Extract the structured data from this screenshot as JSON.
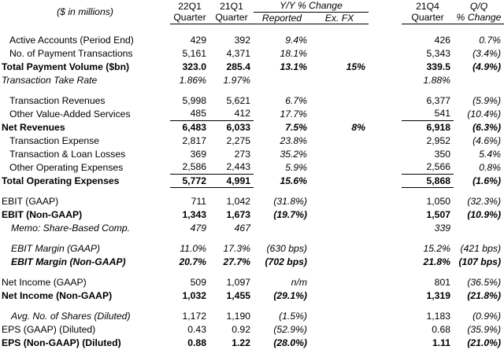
{
  "header": {
    "units": "($ in millions)",
    "col1_top": "22Q1",
    "col1_bot": "Quarter",
    "col2_top": "21Q1",
    "col2_bot": "Quarter",
    "yy_top": "Y/Y % Change",
    "yy_reported": "Reported",
    "yy_exfx": "Ex. FX",
    "col5_top": "21Q4",
    "col5_bot": "Quarter",
    "qq_top": "Q/Q",
    "qq_bot": "% Change"
  },
  "rows": {
    "active_accounts": {
      "label": "Active Accounts (Period End)",
      "q22": "429",
      "q21": "392",
      "rep": "9.4%",
      "fx": "",
      "q4": "426",
      "qq": "0.7%"
    },
    "payment_txns": {
      "label": "No. of Payment Transactions",
      "q22": "5,161",
      "q21": "4,371",
      "rep": "18.1%",
      "fx": "",
      "q4": "5,343",
      "qq": "(3.4%)"
    },
    "tpv": {
      "label": "Total Payment Volume ($bn)",
      "q22": "323.0",
      "q21": "285.4",
      "rep": "13.1%",
      "fx": "15%",
      "q4": "339.5",
      "qq": "(4.9%)"
    },
    "take_rate": {
      "label": "Transaction Take Rate",
      "q22": "1.86%",
      "q21": "1.97%",
      "rep": "",
      "fx": "",
      "q4": "1.88%",
      "qq": ""
    },
    "txn_rev": {
      "label": "Transaction Revenues",
      "q22": "5,998",
      "q21": "5,621",
      "rep": "6.7%",
      "fx": "",
      "q4": "6,377",
      "qq": "(5.9%)"
    },
    "ovas": {
      "label": "Other Value-Added Services",
      "q22": "485",
      "q21": "412",
      "rep": "17.7%",
      "fx": "",
      "q4": "541",
      "qq": "(10.4%)"
    },
    "net_rev": {
      "label": "Net Revenues",
      "q22": "6,483",
      "q21": "6,033",
      "rep": "7.5%",
      "fx": "8%",
      "q4": "6,918",
      "qq": "(6.3%)"
    },
    "txn_exp": {
      "label": "Transaction Expense",
      "q22": "2,817",
      "q21": "2,275",
      "rep": "23.8%",
      "fx": "",
      "q4": "2,952",
      "qq": "(4.6%)"
    },
    "loan_loss": {
      "label": "Transaction & Loan Losses",
      "q22": "369",
      "q21": "273",
      "rep": "35.2%",
      "fx": "",
      "q4": "350",
      "qq": "5.4%"
    },
    "other_opex": {
      "label": "Other Operating Expenses",
      "q22": "2,586",
      "q21": "2,443",
      "rep": "5.9%",
      "fx": "",
      "q4": "2,566",
      "qq": "0.8%"
    },
    "total_opex": {
      "label": "Total Operating Expenses",
      "q22": "5,772",
      "q21": "4,991",
      "rep": "15.6%",
      "fx": "",
      "q4": "5,868",
      "qq": "(1.6%)"
    },
    "ebit_gaap": {
      "label": "EBIT (GAAP)",
      "q22": "711",
      "q21": "1,042",
      "rep": "(31.8%)",
      "fx": "",
      "q4": "1,050",
      "qq": "(32.3%)"
    },
    "ebit_ng": {
      "label": "EBIT (Non-GAAP)",
      "q22": "1,343",
      "q21": "1,673",
      "rep": "(19.7%)",
      "fx": "",
      "q4": "1,507",
      "qq": "(10.9%)"
    },
    "sbc": {
      "label": "Memo: Share-Based Comp.",
      "q22": "479",
      "q21": "467",
      "rep": "",
      "fx": "",
      "q4": "339",
      "qq": ""
    },
    "margin_gaap": {
      "label": "EBIT Margin (GAAP)",
      "q22": "11.0%",
      "q21": "17.3%",
      "rep": "(630 bps)",
      "fx": "",
      "q4": "15.2%",
      "qq": "(421 bps)"
    },
    "margin_ng": {
      "label": "EBIT Margin (Non-GAAP)",
      "q22": "20.7%",
      "q21": "27.7%",
      "rep": "(702 bps)",
      "fx": "",
      "q4": "21.8%",
      "qq": "(107 bps)"
    },
    "ni_gaap": {
      "label": "Net Income (GAAP)",
      "q22": "509",
      "q21": "1,097",
      "rep": "n/m",
      "fx": "",
      "q4": "801",
      "qq": "(36.5%)"
    },
    "ni_ng": {
      "label": "Net Income (Non-GAAP)",
      "q22": "1,032",
      "q21": "1,455",
      "rep": "(29.1%)",
      "fx": "",
      "q4": "1,319",
      "qq": "(21.8%)"
    },
    "shares": {
      "label": "Avg. No. of Shares (Diluted)",
      "q22": "1,172",
      "q21": "1,190",
      "rep": "(1.5%)",
      "fx": "",
      "q4": "1,183",
      "qq": "(0.9%)"
    },
    "eps_gaap": {
      "label": "EPS (GAAP) (Diluted)",
      "q22": "0.43",
      "q21": "0.92",
      "rep": "(52.9%)",
      "fx": "",
      "q4": "0.68",
      "qq": "(35.9%)"
    },
    "eps_ng": {
      "label": "EPS (Non-GAAP) (Diluted)",
      "q22": "0.88",
      "q21": "1.22",
      "rep": "(28.0%)",
      "fx": "",
      "q4": "1.11",
      "qq": "(21.0%)"
    }
  }
}
